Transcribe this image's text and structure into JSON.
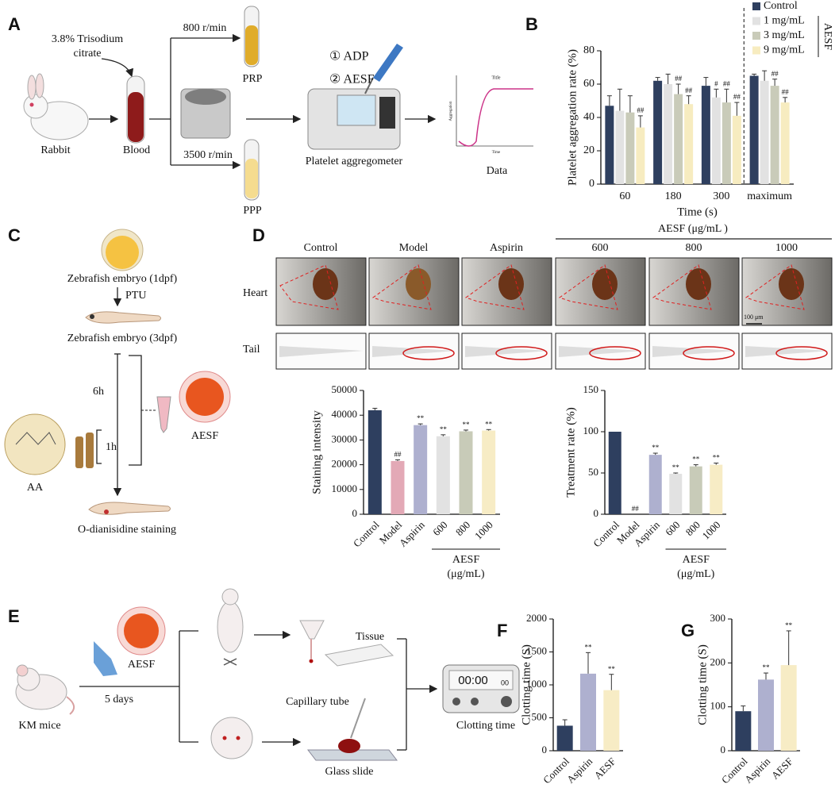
{
  "panel_letters": [
    "A",
    "B",
    "C",
    "D",
    "E",
    "F",
    "G"
  ],
  "panel_A": {
    "citrate": [
      "3.8% Trisodium",
      "citrate"
    ],
    "rabbit": "Rabbit",
    "blood": "Blood",
    "speed_1": "800 r/min",
    "prp": "PRP",
    "speed_2": "3500 r/min",
    "ppp": "PPP",
    "step_1": "① ADP",
    "step_2": "② AESF",
    "device": "Platelet aggregometer",
    "data": "Data",
    "mini_chart": {
      "title": "Title",
      "y_label": "Aggregation",
      "x_label": "Time"
    }
  },
  "panel_C": {
    "embryo_1dpf": "Zebrafish embryo (1dpf)",
    "ptu": "PTU",
    "embryo_3dpf": "Zebrafish embryo (3dpf)",
    "time_6h": "6h",
    "time_1h": "1h",
    "aa": "AA",
    "aesf": "AESF",
    "staining": "O-dianisidine staining"
  },
  "panel_D": {
    "group_header": "AESF (μg/mL )",
    "columns": [
      "Control",
      "Model",
      "Aspirin",
      "600",
      "800",
      "1000"
    ],
    "rows": [
      "Heart",
      "Tail"
    ],
    "scale_bar": "100 μm"
  },
  "panel_E": {
    "aesf": "AESF",
    "km_mice": "KM mice",
    "days": "5 days",
    "tissue": "Tissue",
    "capillary": "Capillary tube",
    "slide": "Glass slide",
    "timer": "00:00",
    "timer_small": "00",
    "clotting": "Clotting time"
  },
  "chart_data": [
    {
      "type": "bar",
      "categories": [
        "60",
        "180",
        "300",
        "maximum"
      ],
      "x_label": "Time (s)",
      "y_label": "Platelet aggregation rate (%)",
      "ylim": [
        0,
        80
      ],
      "yticks": [
        0,
        20,
        40,
        60,
        80
      ],
      "legend": "top-right",
      "legend_group": "AESF",
      "dashed_divider": true,
      "series": [
        {
          "name": "Control",
          "color": "#2e3f5f",
          "values": [
            47,
            62,
            59,
            65
          ],
          "errors": [
            6,
            2,
            5,
            1
          ],
          "annotations": [
            null,
            null,
            null,
            null
          ]
        },
        {
          "name": "1 mg/mL",
          "color": "#e2e2e2",
          "values": [
            44,
            60,
            52,
            62
          ],
          "errors": [
            13,
            6,
            5,
            6
          ],
          "annotations": [
            null,
            null,
            "#",
            null
          ]
        },
        {
          "name": "3 mg/mL",
          "color": "#c9cbb9",
          "values": [
            43,
            54,
            49,
            59
          ],
          "errors": [
            10,
            6,
            8,
            4
          ],
          "annotations": [
            null,
            "##",
            "##",
            "##"
          ]
        },
        {
          "name": "9 mg/mL",
          "color": "#f7ecc0",
          "values": [
            34,
            48,
            41,
            49
          ],
          "errors": [
            7,
            5,
            8,
            3
          ],
          "annotations": [
            "##",
            "##",
            "##",
            "##"
          ]
        }
      ]
    },
    {
      "type": "bar",
      "categories": [
        "Control",
        "Model",
        "Aspirin",
        "600",
        "800",
        "1000"
      ],
      "y_label": "Staining intensity",
      "ylim": [
        0,
        50000
      ],
      "yticks": [
        0,
        10000,
        20000,
        30000,
        40000,
        50000
      ],
      "group_label": [
        "AESF",
        "(μg/mL)"
      ],
      "values": [
        42000,
        21500,
        36000,
        31500,
        33500,
        33800
      ],
      "errors": [
        800,
        500,
        500,
        600,
        500,
        400
      ],
      "colors": [
        "#2e3f5f",
        "#e3a9b6",
        "#aeb0cf",
        "#e2e2e2",
        "#c8cbb8",
        "#f7ecc5"
      ],
      "annotations": [
        null,
        "##",
        "**",
        "**",
        "**",
        "**"
      ]
    },
    {
      "type": "bar",
      "categories": [
        "Control",
        "Model",
        "Aspirin",
        "600",
        "800",
        "1000"
      ],
      "y_label": "Treatment rate (%)",
      "ylim": [
        0,
        150
      ],
      "yticks": [
        0,
        50,
        100,
        150
      ],
      "group_label": [
        "AESF",
        "(μg/mL)"
      ],
      "values": [
        100,
        0,
        72,
        49,
        58,
        60
      ],
      "errors": [
        null,
        null,
        2,
        1,
        2,
        2
      ],
      "colors": [
        "#2e3f5f",
        "#e3a9b6",
        "#aeb0cf",
        "#e2e2e2",
        "#c8cbb8",
        "#f7ecc5"
      ],
      "annotations": [
        null,
        "##",
        "**",
        "**",
        "**",
        "**"
      ]
    },
    {
      "type": "bar",
      "categories": [
        "Control",
        "Aspirin",
        "AESF"
      ],
      "y_label": "Clotting time (S)",
      "ylim": [
        0,
        2000
      ],
      "yticks": [
        0,
        500,
        1000,
        1500,
        2000
      ],
      "values": [
        380,
        1170,
        920
      ],
      "errors": [
        90,
        320,
        240
      ],
      "colors": [
        "#2e3f5f",
        "#aeb0cf",
        "#f7ecc5"
      ],
      "annotations": [
        null,
        "**",
        "**"
      ]
    },
    {
      "type": "bar",
      "categories": [
        "Control",
        "Aspirin",
        "AESF"
      ],
      "y_label": "Clotting time (S)",
      "ylim": [
        0,
        300
      ],
      "yticks": [
        0,
        100,
        200,
        300
      ],
      "values": [
        90,
        162,
        195
      ],
      "errors": [
        12,
        15,
        78
      ],
      "colors": [
        "#2e3f5f",
        "#aeb0cf",
        "#f7ecc5"
      ],
      "annotations": [
        null,
        "**",
        "**"
      ]
    }
  ]
}
